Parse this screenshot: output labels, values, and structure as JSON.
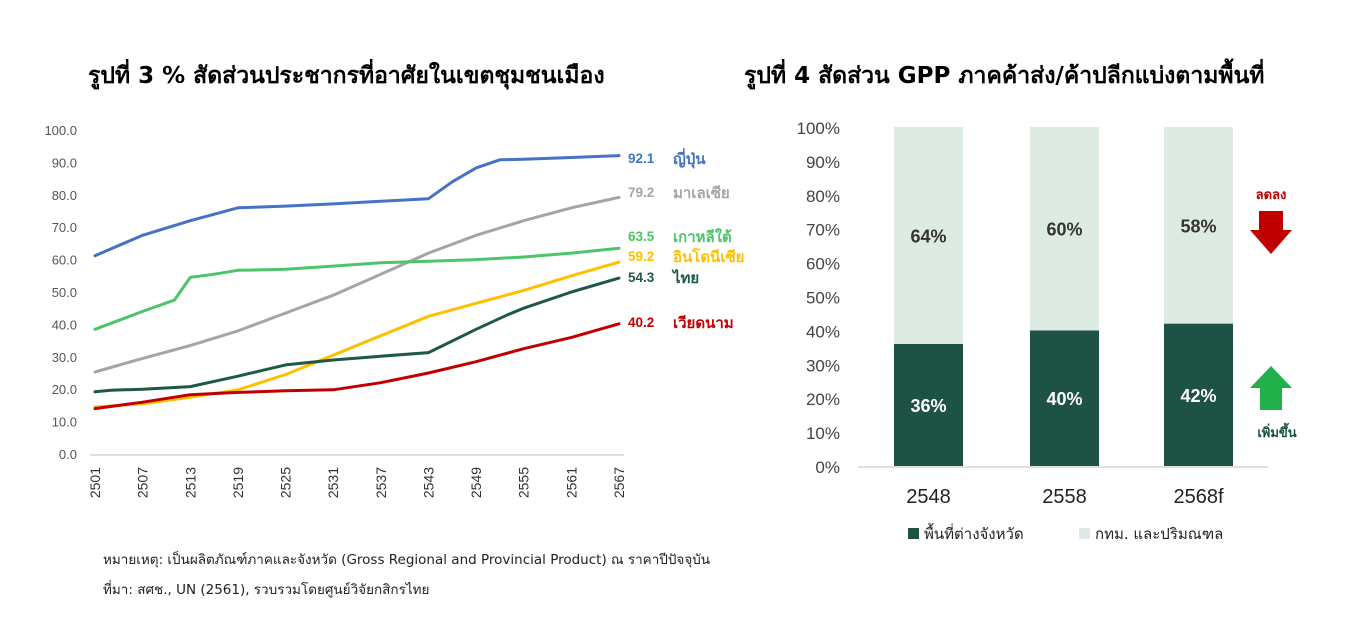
{
  "titles": {
    "left": "รูปที่ 3 % สัดส่วนประชากรที่อาศัยในเขตชุมชนเมือง",
    "right": "รูปที่ 4 สัดส่วน GPP ภาคค้าส่ง/ค้าปลีกแบ่งตามพื้นที่"
  },
  "notes": {
    "line1": "หมายเหตุ: เป็นผลิตภัณฑ์ภาคและจังหวัด (Gross Regional and Provincial Product) ณ ราคาปีปัจจุบัน",
    "line2": "ที่มา: สศช., UN (2561), รวบรวมโดยศูนย์วิจัยกสิกรไทย"
  },
  "chart_data": [
    {
      "type": "line",
      "title": "รูปที่ 3 % สัดส่วนประชากรที่อาศัยในเขตชุมชนเมือง",
      "ylim": [
        0,
        100
      ],
      "yticks": [
        "0.0",
        "10.0",
        "20.0",
        "30.0",
        "40.0",
        "50.0",
        "60.0",
        "70.0",
        "80.0",
        "90.0",
        "100.0"
      ],
      "xticks": [
        "2501",
        "2507",
        "2513",
        "2519",
        "2525",
        "2531",
        "2537",
        "2543",
        "2549",
        "2555",
        "2561",
        "2567"
      ],
      "grid": false,
      "series": [
        {
          "name": "ญี่ปุ่น",
          "label": "92.1",
          "color": "#4472C4",
          "x": [
            2501,
            2507,
            2513,
            2519,
            2525,
            2531,
            2537,
            2543,
            2546,
            2549,
            2552,
            2555,
            2561,
            2567
          ],
          "y": [
            61.2,
            67.5,
            72.0,
            76.0,
            76.5,
            77.2,
            78.0,
            78.8,
            84.0,
            88.3,
            90.8,
            91.0,
            91.5,
            92.1
          ]
        },
        {
          "name": "มาเลเซีย",
          "label": "79.2",
          "color": "#A5A5A5",
          "x": [
            2501,
            2507,
            2513,
            2519,
            2525,
            2531,
            2537,
            2543,
            2549,
            2555,
            2561,
            2567
          ],
          "y": [
            25.3,
            29.5,
            33.5,
            38.0,
            43.5,
            49.0,
            55.5,
            62.0,
            67.5,
            72.0,
            76.0,
            79.2
          ]
        },
        {
          "name": "เกาหลีใต้",
          "label": "63.5",
          "color": "#4CC46A",
          "x": [
            2501,
            2507,
            2511,
            2513,
            2516,
            2519,
            2525,
            2531,
            2537,
            2543,
            2549,
            2555,
            2561,
            2567
          ],
          "y": [
            38.5,
            44.0,
            47.5,
            54.5,
            55.5,
            56.7,
            57.0,
            58.0,
            59.0,
            59.5,
            60.0,
            60.8,
            62.0,
            63.5
          ]
        },
        {
          "name": "อินโดนีเซีย",
          "label": "59.2",
          "color": "#FFC000",
          "x": [
            2501,
            2507,
            2513,
            2519,
            2525,
            2531,
            2537,
            2543,
            2549,
            2555,
            2561,
            2567
          ],
          "y": [
            14.5,
            15.5,
            17.5,
            19.8,
            24.5,
            30.5,
            36.5,
            42.5,
            46.5,
            50.5,
            55.0,
            59.2
          ]
        },
        {
          "name": "ไทย",
          "label": "54.3",
          "color": "#1E5945",
          "x": [
            2501,
            2503,
            2507,
            2513,
            2519,
            2525,
            2531,
            2537,
            2543,
            2549,
            2553,
            2555,
            2561,
            2567
          ],
          "y": [
            19.2,
            19.7,
            20.0,
            20.8,
            24.0,
            27.5,
            29.0,
            30.2,
            31.3,
            38.5,
            43.0,
            45.0,
            50.0,
            54.3
          ]
        },
        {
          "name": "เวียดนาม",
          "label": "40.2",
          "color": "#C00000",
          "x": [
            2501,
            2507,
            2513,
            2519,
            2525,
            2531,
            2537,
            2543,
            2549,
            2555,
            2561,
            2567
          ],
          "y": [
            14.0,
            16.0,
            18.3,
            19.0,
            19.5,
            19.8,
            22.0,
            25.0,
            28.5,
            32.5,
            36.0,
            40.2
          ]
        }
      ]
    },
    {
      "type": "bar",
      "stacked": true,
      "title": "รูปที่ 4 สัดส่วน GPP ภาคค้าส่ง/ค้าปลีกแบ่งตามพื้นที่",
      "categories": [
        "2548",
        "2558",
        "2568f"
      ],
      "ylim": [
        0,
        100
      ],
      "yticks": [
        "0%",
        "10%",
        "20%",
        "30%",
        "40%",
        "50%",
        "60%",
        "70%",
        "80%",
        "90%",
        "100%"
      ],
      "series": [
        {
          "name": "พื้นที่ต่างจังหวัด",
          "values": [
            36,
            40,
            42
          ],
          "labels": [
            "36%",
            "40%",
            "42%"
          ],
          "color": "#1E5245"
        },
        {
          "name": "กทม. และปริมณฑล",
          "values": [
            64,
            60,
            58
          ],
          "labels": [
            "64%",
            "60%",
            "58%"
          ],
          "color": "#DDEBE3"
        }
      ],
      "legend_position": "bottom",
      "annotations": [
        {
          "text": "ลดลง",
          "color": "#C00000",
          "arrow": "down"
        },
        {
          "text": "เพิ่มขึ้น",
          "color": "#1E5245",
          "arrow": "up"
        }
      ]
    }
  ]
}
